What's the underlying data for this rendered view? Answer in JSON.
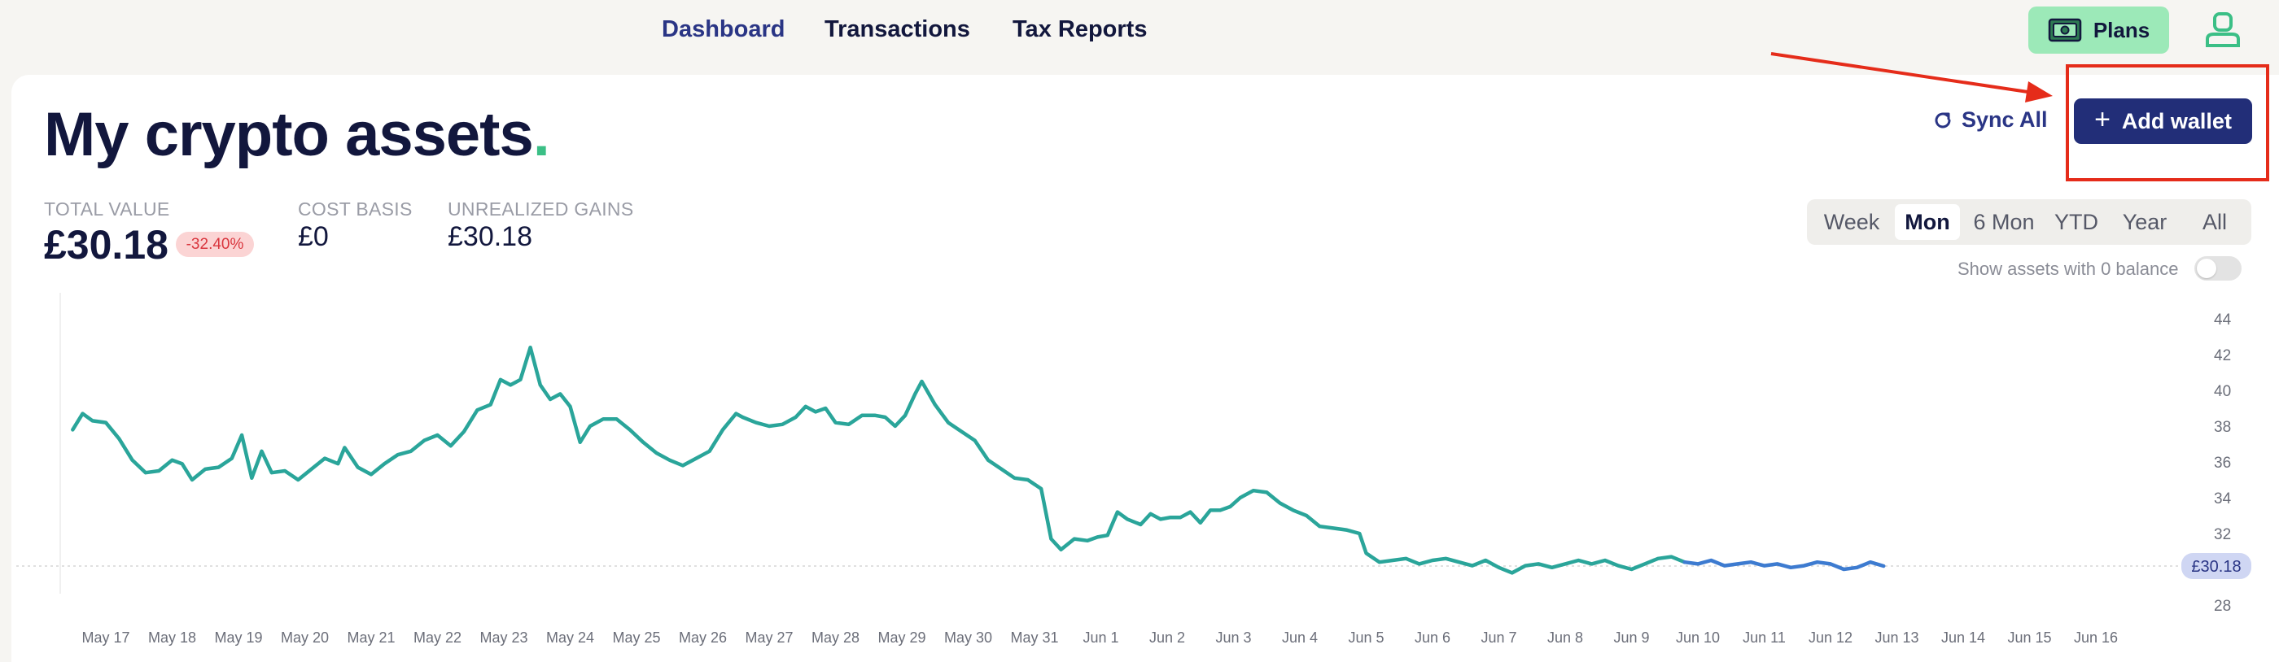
{
  "nav": {
    "links": [
      "Dashboard",
      "Transactions",
      "Tax Reports"
    ],
    "active": "Dashboard",
    "plans_label": "Plans"
  },
  "header": {
    "title": "My crypto assets",
    "title_dot": ".",
    "sync_label": "Sync All",
    "add_wallet_label": "Add wallet",
    "add_wallet_plus": "+"
  },
  "stats": {
    "total_label": "TOTAL VALUE",
    "total_value": "£30.18",
    "change_badge": "-32.40%",
    "cost_label": "COST BASIS",
    "cost_value": "£0",
    "gains_label": "UNREALIZED GAINS",
    "gains_value": "£30.18"
  },
  "ranges": [
    "Week",
    "Mon",
    "6 Mon",
    "YTD",
    "Year",
    "All"
  ],
  "active_range": "Mon",
  "zero_balance_label": "Show assets with 0 balance",
  "zero_balance_on": false,
  "colors": {
    "accent": "#222e78",
    "line_primary": "#2aa59a",
    "line_recent": "#3d7bd0",
    "annotation": "#e52c1a",
    "badge_bg": "#fbd4d4",
    "badge_text": "#d9363e"
  },
  "chart_data": {
    "type": "line",
    "x_ticks": [
      "May 17",
      "May 18",
      "May 19",
      "May 20",
      "May 21",
      "May 22",
      "May 23",
      "May 24",
      "May 25",
      "May 26",
      "May 27",
      "May 28",
      "May 29",
      "May 30",
      "May 31",
      "Jun 1",
      "Jun 2",
      "Jun 3",
      "Jun 4",
      "Jun 5",
      "Jun 6",
      "Jun 7",
      "Jun 8",
      "Jun 9",
      "Jun 10",
      "Jun 11",
      "Jun 12",
      "Jun 13",
      "Jun 14",
      "Jun 15",
      "Jun 16"
    ],
    "y_ticks": [
      28,
      30,
      32,
      34,
      36,
      38,
      40,
      42,
      44
    ],
    "ylim": [
      28,
      44
    ],
    "current_value_label": "£30.18",
    "current_value": 30.18,
    "points": [
      [
        16.5,
        37.8
      ],
      [
        16.65,
        38.7
      ],
      [
        16.8,
        38.3
      ],
      [
        17.0,
        38.2
      ],
      [
        17.2,
        37.3
      ],
      [
        17.4,
        36.1
      ],
      [
        17.6,
        35.4
      ],
      [
        17.8,
        35.5
      ],
      [
        18.0,
        36.1
      ],
      [
        18.15,
        35.9
      ],
      [
        18.3,
        35.0
      ],
      [
        18.5,
        35.6
      ],
      [
        18.7,
        35.7
      ],
      [
        18.9,
        36.2
      ],
      [
        19.05,
        37.5
      ],
      [
        19.2,
        35.1
      ],
      [
        19.35,
        36.6
      ],
      [
        19.5,
        35.4
      ],
      [
        19.7,
        35.5
      ],
      [
        19.9,
        35.0
      ],
      [
        20.1,
        35.6
      ],
      [
        20.3,
        36.2
      ],
      [
        20.5,
        35.9
      ],
      [
        20.6,
        36.8
      ],
      [
        20.8,
        35.7
      ],
      [
        21.0,
        35.3
      ],
      [
        21.2,
        35.9
      ],
      [
        21.4,
        36.4
      ],
      [
        21.6,
        36.6
      ],
      [
        21.8,
        37.2
      ],
      [
        22.0,
        37.5
      ],
      [
        22.2,
        36.9
      ],
      [
        22.4,
        37.7
      ],
      [
        22.6,
        38.9
      ],
      [
        22.8,
        39.2
      ],
      [
        22.95,
        40.6
      ],
      [
        23.1,
        40.3
      ],
      [
        23.25,
        40.6
      ],
      [
        23.4,
        42.4
      ],
      [
        23.55,
        40.3
      ],
      [
        23.7,
        39.5
      ],
      [
        23.85,
        39.8
      ],
      [
        24.0,
        39.1
      ],
      [
        24.15,
        37.1
      ],
      [
        24.3,
        38.0
      ],
      [
        24.5,
        38.4
      ],
      [
        24.7,
        38.4
      ],
      [
        24.9,
        37.8
      ],
      [
        25.1,
        37.1
      ],
      [
        25.3,
        36.5
      ],
      [
        25.5,
        36.1
      ],
      [
        25.7,
        35.8
      ],
      [
        25.9,
        36.2
      ],
      [
        26.1,
        36.6
      ],
      [
        26.3,
        37.8
      ],
      [
        26.5,
        38.7
      ],
      [
        26.6,
        38.5
      ],
      [
        26.8,
        38.2
      ],
      [
        27.0,
        38.0
      ],
      [
        27.2,
        38.1
      ],
      [
        27.4,
        38.5
      ],
      [
        27.55,
        39.1
      ],
      [
        27.7,
        38.8
      ],
      [
        27.85,
        39.0
      ],
      [
        28.0,
        38.2
      ],
      [
        28.2,
        38.1
      ],
      [
        28.4,
        38.6
      ],
      [
        28.6,
        38.6
      ],
      [
        28.75,
        38.5
      ],
      [
        28.9,
        38.0
      ],
      [
        29.05,
        38.6
      ],
      [
        29.2,
        39.8
      ],
      [
        29.3,
        40.5
      ],
      [
        29.5,
        39.2
      ],
      [
        29.7,
        38.2
      ],
      [
        29.9,
        37.7
      ],
      [
        30.1,
        37.2
      ],
      [
        30.3,
        36.1
      ],
      [
        30.5,
        35.6
      ],
      [
        30.7,
        35.1
      ],
      [
        30.9,
        35.0
      ],
      [
        31.1,
        34.5
      ],
      [
        31.25,
        31.7
      ],
      [
        31.4,
        31.1
      ],
      [
        31.6,
        31.7
      ],
      [
        31.8,
        31.6
      ],
      [
        31.95,
        31.8
      ],
      [
        32.1,
        31.9
      ],
      [
        32.25,
        33.2
      ],
      [
        32.4,
        32.8
      ],
      [
        32.6,
        32.5
      ],
      [
        32.75,
        33.1
      ],
      [
        32.9,
        32.8
      ],
      [
        33.05,
        32.9
      ],
      [
        33.2,
        32.9
      ],
      [
        33.35,
        33.2
      ],
      [
        33.5,
        32.6
      ],
      [
        33.65,
        33.3
      ],
      [
        33.8,
        33.3
      ],
      [
        33.95,
        33.5
      ],
      [
        34.1,
        34.0
      ],
      [
        34.3,
        34.4
      ],
      [
        34.5,
        34.3
      ],
      [
        34.7,
        33.7
      ],
      [
        34.9,
        33.3
      ],
      [
        35.1,
        33.0
      ],
      [
        35.3,
        32.4
      ],
      [
        35.5,
        32.3
      ],
      [
        35.7,
        32.2
      ],
      [
        35.9,
        32.0
      ],
      [
        36.0,
        30.9
      ],
      [
        36.2,
        30.4
      ],
      [
        36.4,
        30.5
      ],
      [
        36.6,
        30.6
      ],
      [
        36.8,
        30.3
      ],
      [
        37.0,
        30.5
      ],
      [
        37.2,
        30.6
      ],
      [
        37.4,
        30.4
      ],
      [
        37.6,
        30.2
      ],
      [
        37.8,
        30.5
      ],
      [
        38.0,
        30.1
      ],
      [
        38.2,
        29.8
      ],
      [
        38.4,
        30.2
      ],
      [
        38.6,
        30.3
      ],
      [
        38.8,
        30.1
      ],
      [
        39.0,
        30.3
      ],
      [
        39.2,
        30.5
      ],
      [
        39.4,
        30.3
      ],
      [
        39.6,
        30.5
      ],
      [
        39.8,
        30.2
      ],
      [
        40.0,
        30.0
      ],
      [
        40.2,
        30.3
      ],
      [
        40.4,
        30.6
      ],
      [
        40.6,
        30.7
      ],
      [
        40.8,
        30.4
      ],
      [
        41.0,
        30.3
      ],
      [
        41.2,
        30.5
      ],
      [
        41.4,
        30.2
      ],
      [
        41.6,
        30.3
      ],
      [
        41.8,
        30.4
      ],
      [
        42.0,
        30.2
      ],
      [
        42.2,
        30.3
      ],
      [
        42.4,
        30.1
      ],
      [
        42.6,
        30.2
      ],
      [
        42.8,
        30.4
      ],
      [
        43.0,
        30.3
      ],
      [
        43.2,
        30.0
      ],
      [
        43.4,
        30.1
      ],
      [
        43.6,
        30.4
      ],
      [
        43.8,
        30.18
      ]
    ],
    "grid": false,
    "legend": "none"
  }
}
